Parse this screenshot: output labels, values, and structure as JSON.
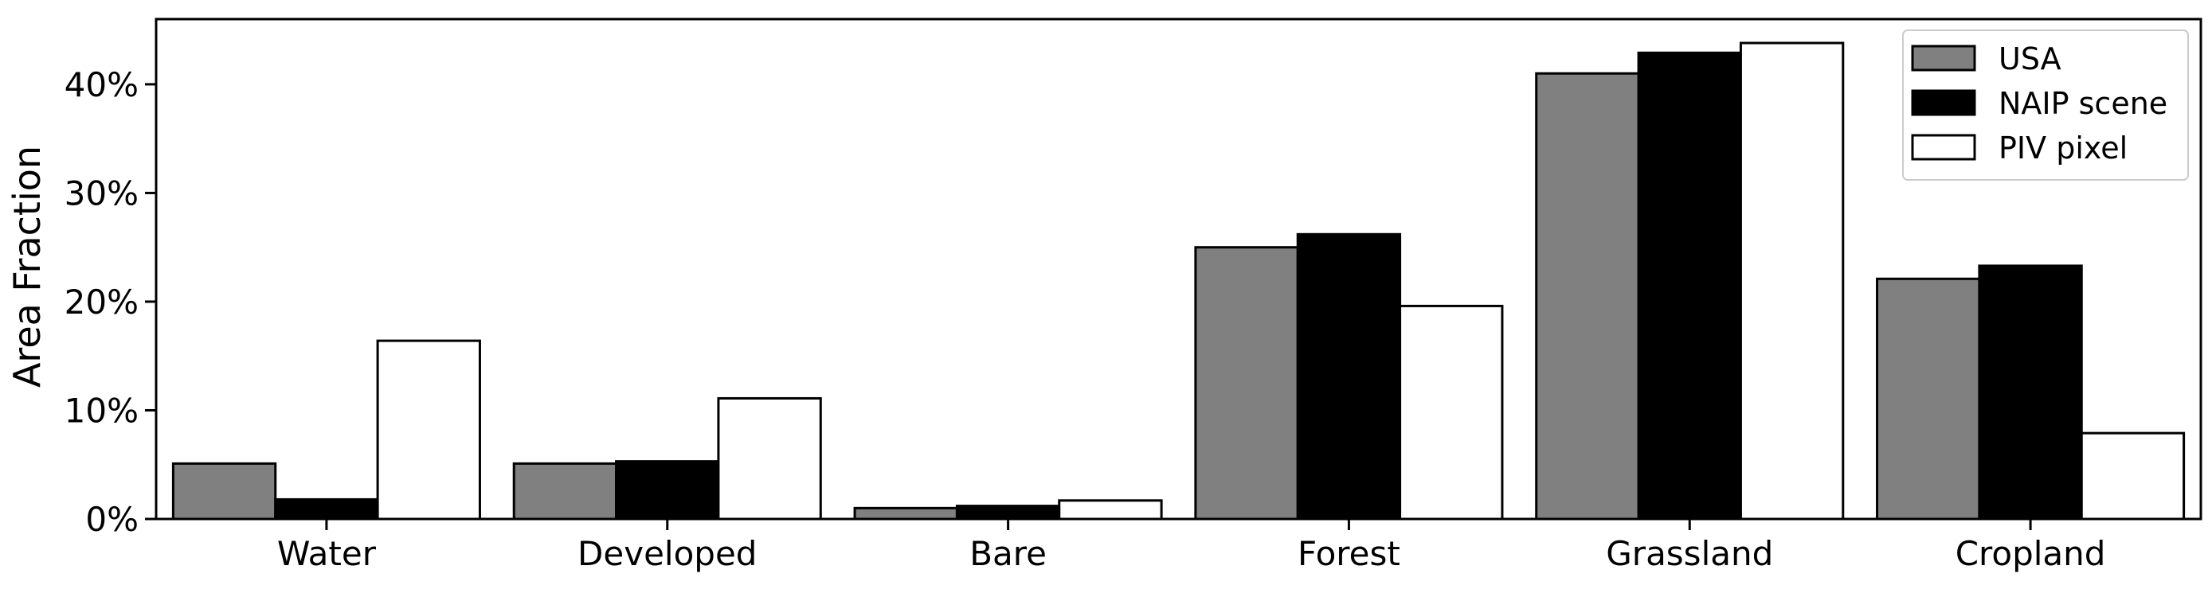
{
  "chart_data": {
    "type": "bar",
    "ylabel": "Area Fraction",
    "categories": [
      "Water",
      "Developed",
      "Bare",
      "Forest",
      "Grassland",
      "Cropland"
    ],
    "ylim": [
      0,
      46
    ],
    "yticks": [
      0,
      10,
      20,
      30,
      40
    ],
    "ytick_labels": [
      "0%",
      "10%",
      "20%",
      "30%",
      "40%"
    ],
    "grid": false,
    "legend_position": "top-right",
    "series": [
      {
        "name": "USA",
        "color": "#808080",
        "values": [
          5.1,
          5.1,
          1.0,
          25.0,
          41.0,
          22.1
        ]
      },
      {
        "name": "NAIP scene",
        "color": "#000000",
        "values": [
          1.8,
          5.3,
          1.2,
          26.2,
          42.9,
          23.3
        ]
      },
      {
        "name": "PIV pixel",
        "color": "#ffffff",
        "values": [
          16.4,
          11.1,
          1.7,
          19.6,
          43.8,
          7.9
        ]
      }
    ]
  }
}
